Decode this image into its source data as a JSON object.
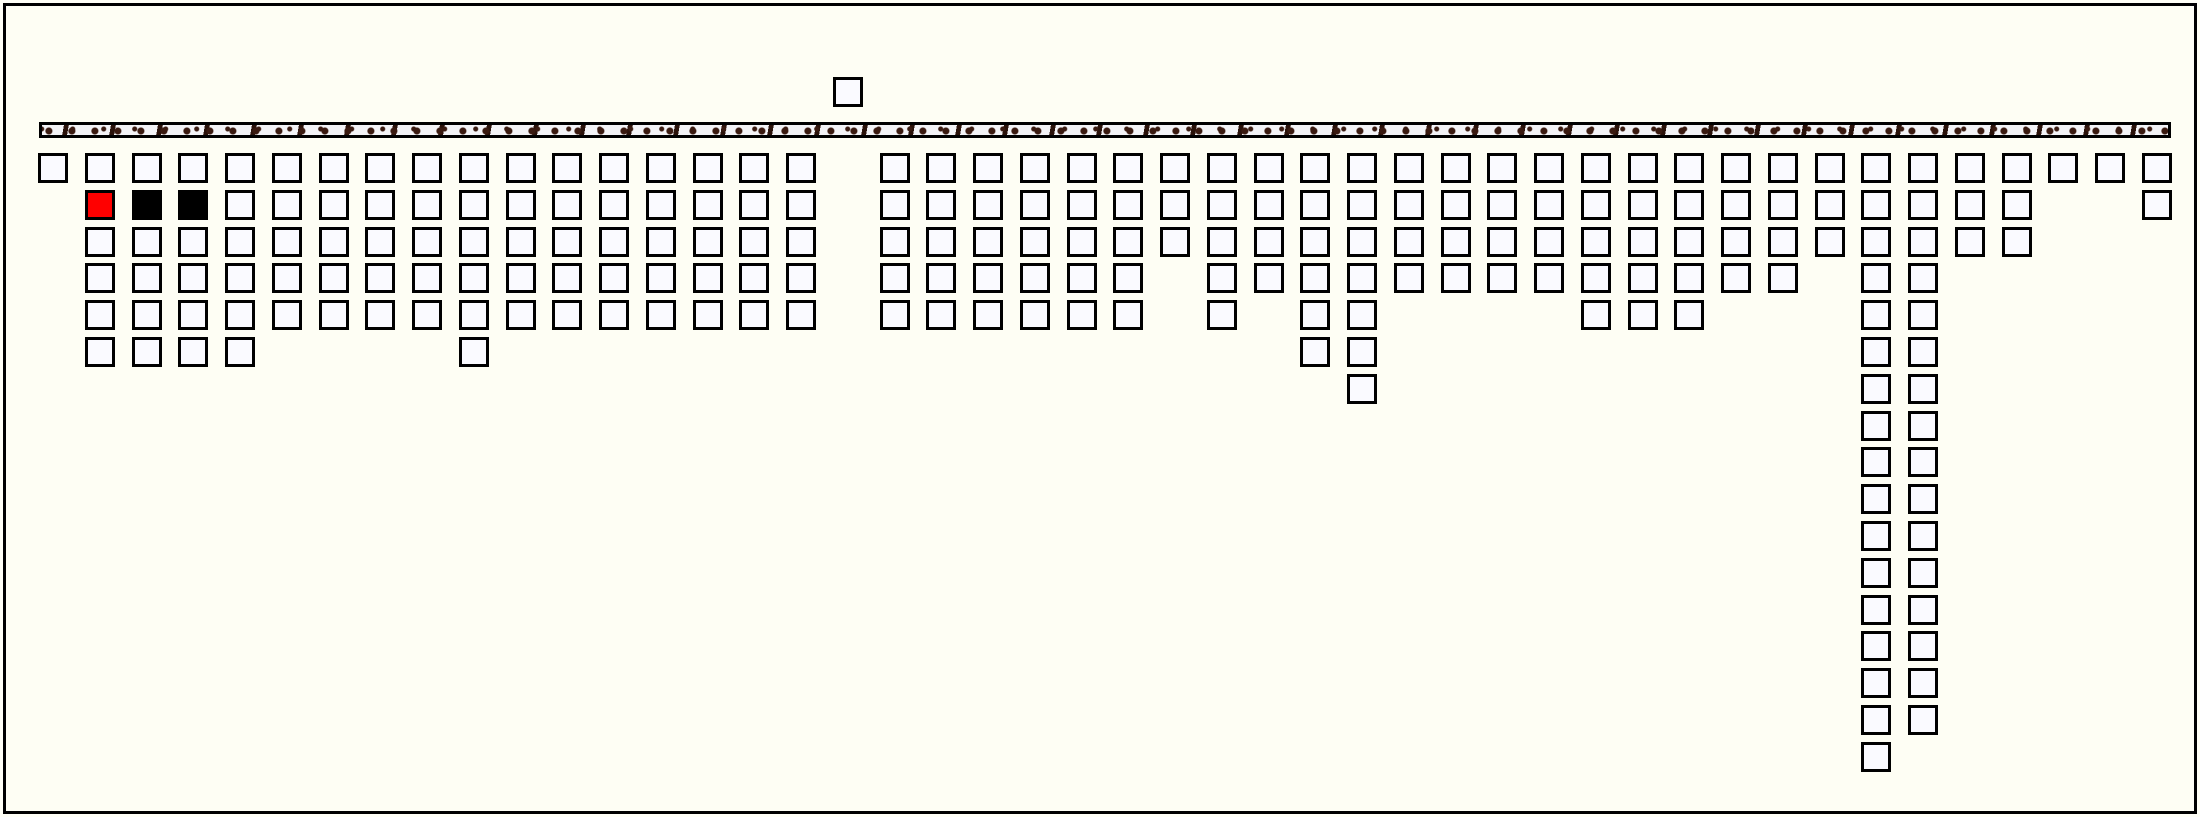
{
  "game": {
    "columns": [
      1,
      6,
      6,
      6,
      6,
      5,
      5,
      5,
      5,
      6,
      5,
      5,
      5,
      5,
      5,
      5,
      5,
      0,
      5,
      5,
      5,
      5,
      5,
      5,
      3,
      5,
      4,
      6,
      7,
      4,
      4,
      4,
      4,
      5,
      5,
      5,
      4,
      4,
      3,
      17,
      16,
      3,
      3,
      1,
      1,
      2
    ],
    "held_cell_column": 17,
    "special_cells": [
      {
        "col": 1,
        "row": 1,
        "color": "#ff0000"
      },
      {
        "col": 2,
        "row": 1,
        "color": "#000000"
      },
      {
        "col": 3,
        "row": 1,
        "color": "#000000"
      }
    ],
    "colors": {
      "cell": "#fafaff",
      "border": "#000000",
      "background": "#fefef4",
      "bar_dots": "#3a1a10"
    }
  }
}
